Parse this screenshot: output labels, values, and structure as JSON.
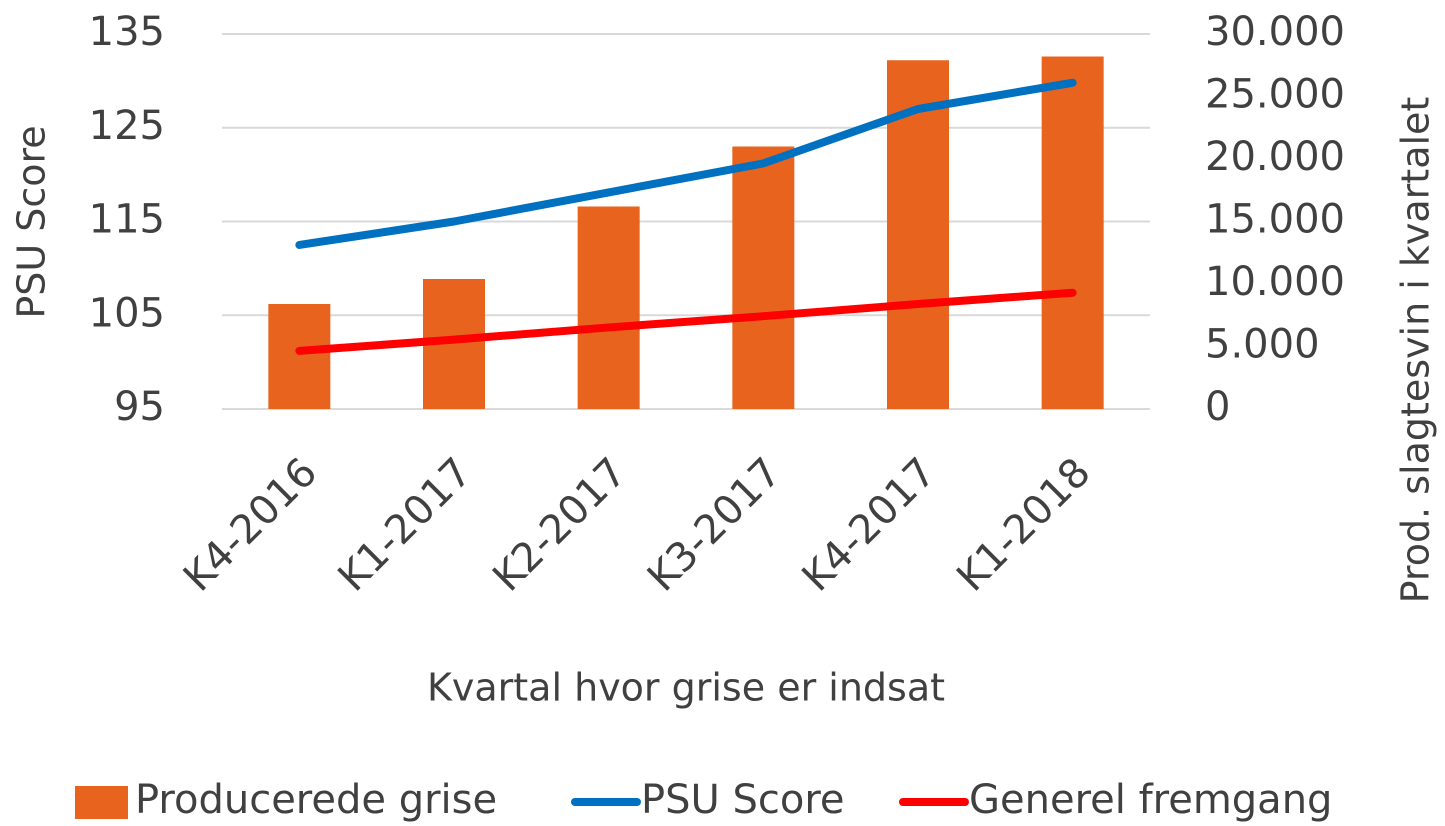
{
  "chart_data": {
    "type": "bar_line",
    "xlabel": "Kvartal hvor grise er indsat",
    "ylabel": "PSU Score",
    "y2label": "Prod. slagtesvin i kvartalet",
    "categories": [
      "K4-2016",
      "K1-2017",
      "K2-2017",
      "K3-2017",
      "K4-2017",
      "K1-2018"
    ],
    "series": [
      {
        "name": "Producerede grise",
        "type": "bar",
        "axis": "y2",
        "color": "#e8641e",
        "values": [
          8400,
          10400,
          16200,
          21000,
          27900,
          28200
        ]
      },
      {
        "name": "PSU Score",
        "type": "line",
        "color": "#0070c0",
        "values": [
          112.5,
          115.0,
          118.1,
          121.2,
          127.0,
          129.8
        ]
      },
      {
        "name": "Generel fremgang",
        "type": "line",
        "color": "#ff0000",
        "values": [
          101.2,
          102.4,
          103.7,
          104.9,
          106.2,
          107.4
        ]
      }
    ],
    "ylim": [
      95,
      135
    ],
    "yticks": [
      95,
      105,
      115,
      125,
      135
    ],
    "y2lim": [
      0,
      30000
    ],
    "y2ticks": [
      0,
      {
        "value": 5000,
        "label": "5.000"
      },
      {
        "value": 10000,
        "label": "10.000"
      },
      {
        "value": 15000,
        "label": "15.000"
      },
      {
        "value": 20000,
        "label": "20.000"
      },
      {
        "value": 25000,
        "label": "25.000"
      },
      {
        "value": 30000,
        "label": "30.000"
      }
    ],
    "grid": true,
    "legend": "bottom"
  }
}
